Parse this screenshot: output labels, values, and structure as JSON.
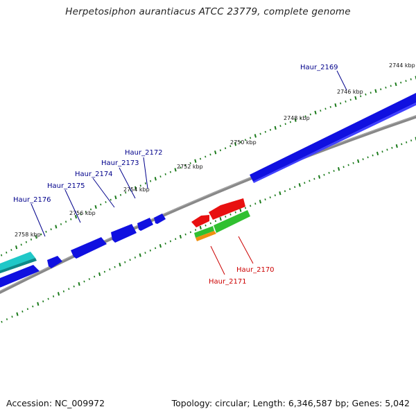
{
  "title": "Herpetosiphon aurantiacus ATCC 23779, complete genome",
  "footer": {
    "accession": "Accession: NC_009972",
    "summary": "Topology: circular; Length: 6,346,587 bp; Genes: 5,042"
  },
  "ticks": [
    "2744 kbp",
    "2746 kbp",
    "2748 kbp",
    "2750 kbp",
    "2752 kbp",
    "2754 kbp",
    "2756 kbp",
    "2758 kbp"
  ],
  "genes_outer": [
    "Haur_2169",
    "Haur_2172",
    "Haur_2173",
    "Haur_2174",
    "Haur_2175",
    "Haur_2176"
  ],
  "genes_inner": [
    "Haur_2170",
    "Haur_2171"
  ],
  "colors": {
    "forward_gene": "#1010e0",
    "reverse_gene": "#e81010",
    "cyan_gene": "#20c8c8",
    "green_gene": "#30c030",
    "orange_gene": "#f09010",
    "tick": "#1a7a1a",
    "backbone": "#888888",
    "outer_label": "#00008b",
    "inner_label": "#cc0000"
  }
}
